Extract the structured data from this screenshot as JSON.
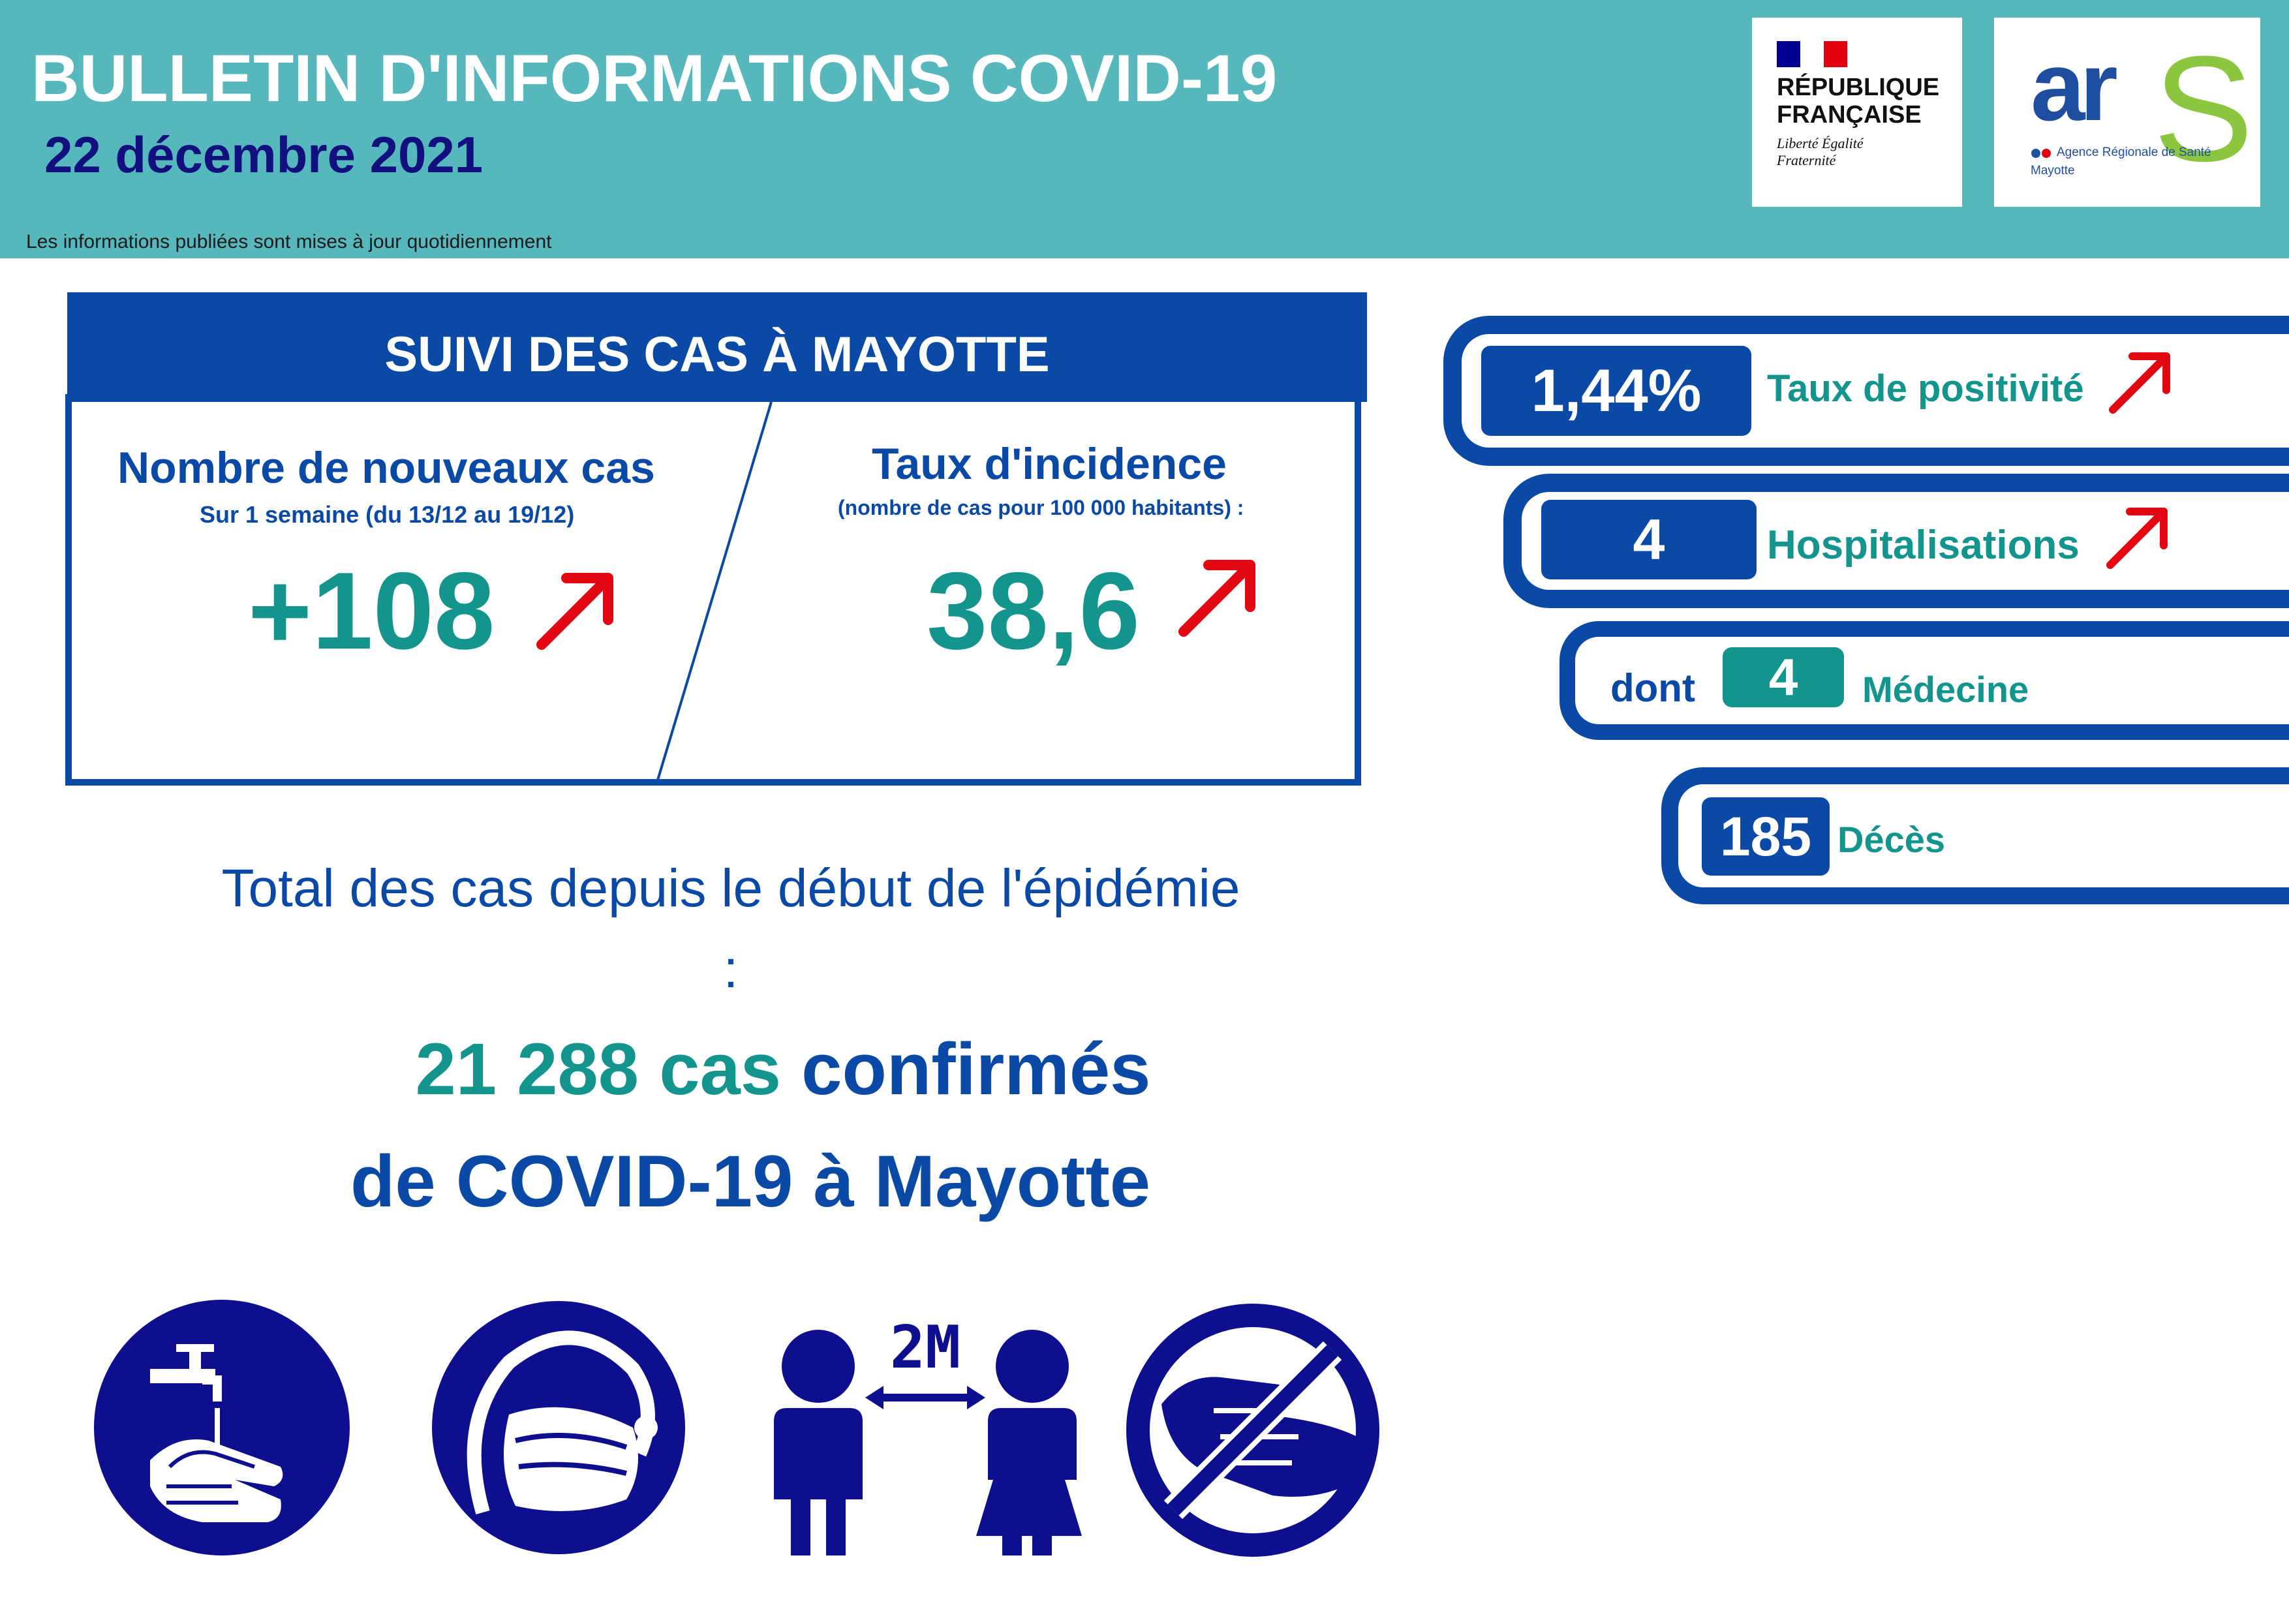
{
  "header": {
    "title": "BULLETIN D'INFORMATIONS COVID-19",
    "date": "22 décembre 2021",
    "update_note": "Les informations publiées sont mises à jour quotidiennement"
  },
  "logos": {
    "rf_name": "RÉPUBLIQUE FRANÇAISE",
    "rf_motto": "Liberté Égalité Fraternité",
    "ars_word": "ar",
    "ars_s": "S",
    "ars_sub": "Agence Régionale de Santé",
    "ars_region": "Mayotte"
  },
  "suivi": {
    "title": "SUIVI DES CAS À MAYOTTE",
    "new_cases_label": "Nombre de nouveaux cas",
    "new_cases_period": "Sur 1 semaine (du 13/12 au 19/12)",
    "new_cases_value": "+108",
    "incidence_label": "Taux d'incidence",
    "incidence_sub": "(nombre de cas pour 100 000 habitants) :",
    "incidence_value": "38,6"
  },
  "total": {
    "lead": "Total des cas depuis le début de l'épidémie :",
    "count": "21 288 cas",
    "confirmed": " confirmés",
    "line2": "de COVID-19 à Mayotte"
  },
  "indicators": {
    "positivity_value": "1,44%",
    "positivity_label": "Taux de positivité",
    "hosp_value": "4",
    "hosp_label": "Hospitalisations",
    "dont": "dont",
    "medecine_value": "4",
    "medecine_label": "Médecine",
    "deaths_value": "185",
    "deaths_label": "Décès"
  },
  "distance_label": "2M",
  "colors": {
    "header_bg": "#56b8bd",
    "dark_blue": "#0b49a7",
    "navy": "#12107f",
    "teal": "#13958e",
    "arrow_red": "#e30613",
    "icon_navy": "#0e0f8e"
  },
  "icons": [
    "hand-washing-icon",
    "face-mask-icon",
    "distancing-icon",
    "no-handshake-icon"
  ]
}
